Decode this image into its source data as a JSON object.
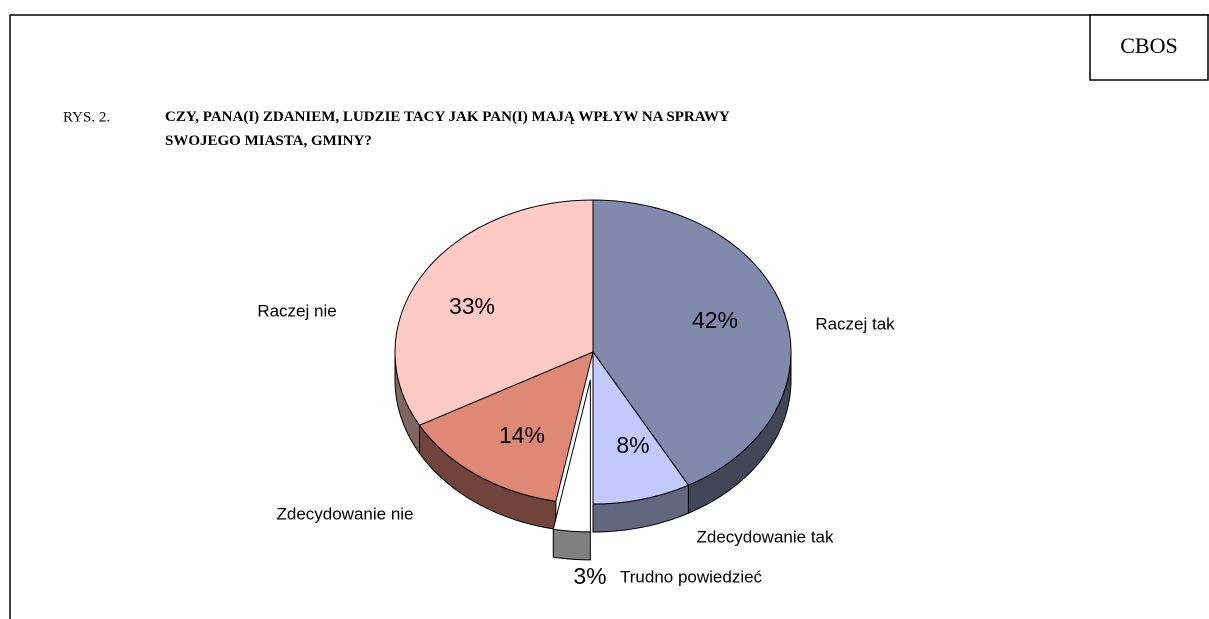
{
  "chart_data": {
    "type": "pie",
    "source": "CBOS",
    "figure_label": "RYS. 2.",
    "title": "CZY, PANA(I) ZDANIEM, LUDZIE TACY JAK PAN(I) MAJĄ WPŁYW NA SPRAWY SWOJEGO MIASTA, GMINY?",
    "categories": [
      "Raczej tak",
      "Zdecydowanie tak",
      "Trudno powiedzieć",
      "Zdecydowanie nie",
      "Raczej nie"
    ],
    "values": [
      42,
      8,
      3,
      14,
      33
    ],
    "value_labels": [
      "42%",
      "8%",
      "3%",
      "14%",
      "33%"
    ],
    "colors": [
      "#8189ac",
      "#c3c9fc",
      "#ffffff",
      "#e08876",
      "#ffc9c4"
    ]
  }
}
